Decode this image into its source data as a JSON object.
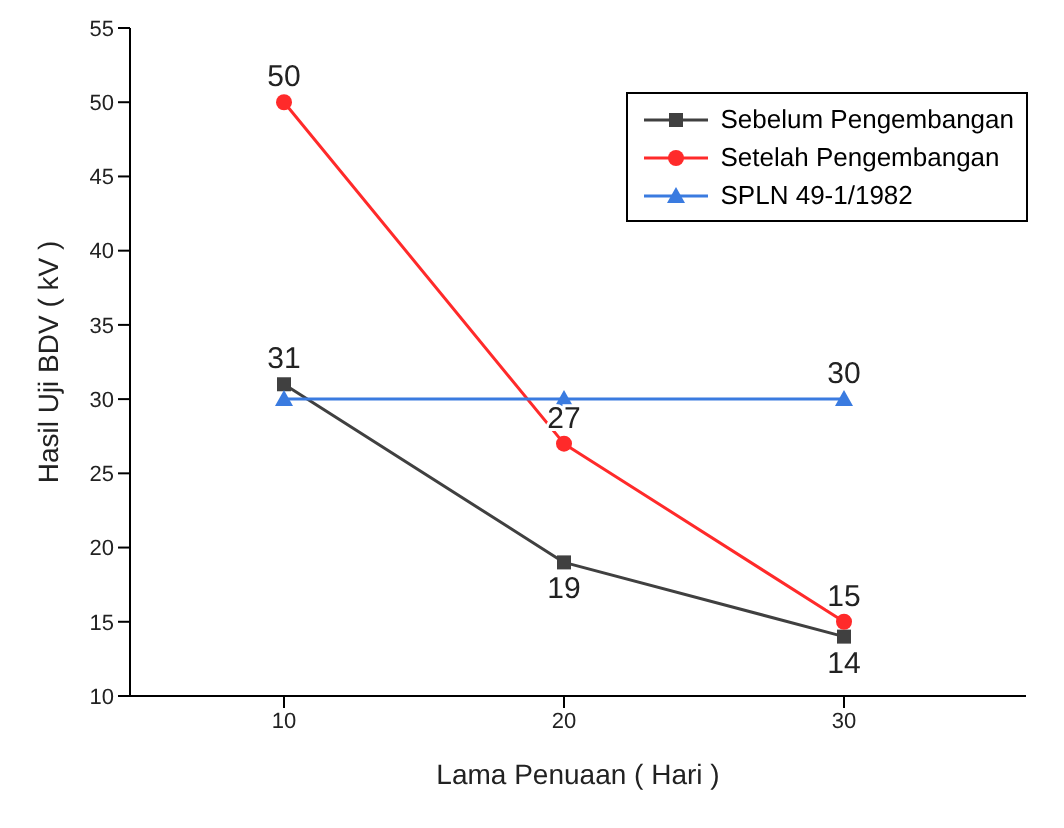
{
  "chart_data": {
    "type": "line",
    "xlabel": "Lama Penuaan ( Hari )",
    "ylabel": "Hasil Uji BDV ( kV )",
    "x": [
      10,
      20,
      30
    ],
    "xlim": [
      4.5,
      36.5
    ],
    "xticks": [
      10,
      20,
      30
    ],
    "ylim": [
      10,
      55
    ],
    "yticks": [
      10,
      15,
      20,
      25,
      30,
      35,
      40,
      45,
      50,
      55
    ],
    "grid": false,
    "legend": "top right",
    "line_style": "solid",
    "series": [
      {
        "name": "Sebelum Pengembangan",
        "color": "#404040",
        "marker": "square",
        "values": [
          31,
          19,
          14
        ],
        "value_labels": [
          "31",
          "19",
          "14"
        ]
      },
      {
        "name": "Setelah Pengembangan",
        "color": "#ff2a2a",
        "marker": "circle",
        "values": [
          50,
          27,
          15
        ],
        "value_labels": [
          "50",
          "27",
          "15"
        ]
      },
      {
        "name": "SPLN 49-1/1982",
        "color": "#3a7be0",
        "marker": "triangle",
        "values": [
          30,
          30,
          30
        ],
        "value_labels": [
          null,
          null,
          "30"
        ]
      }
    ]
  }
}
